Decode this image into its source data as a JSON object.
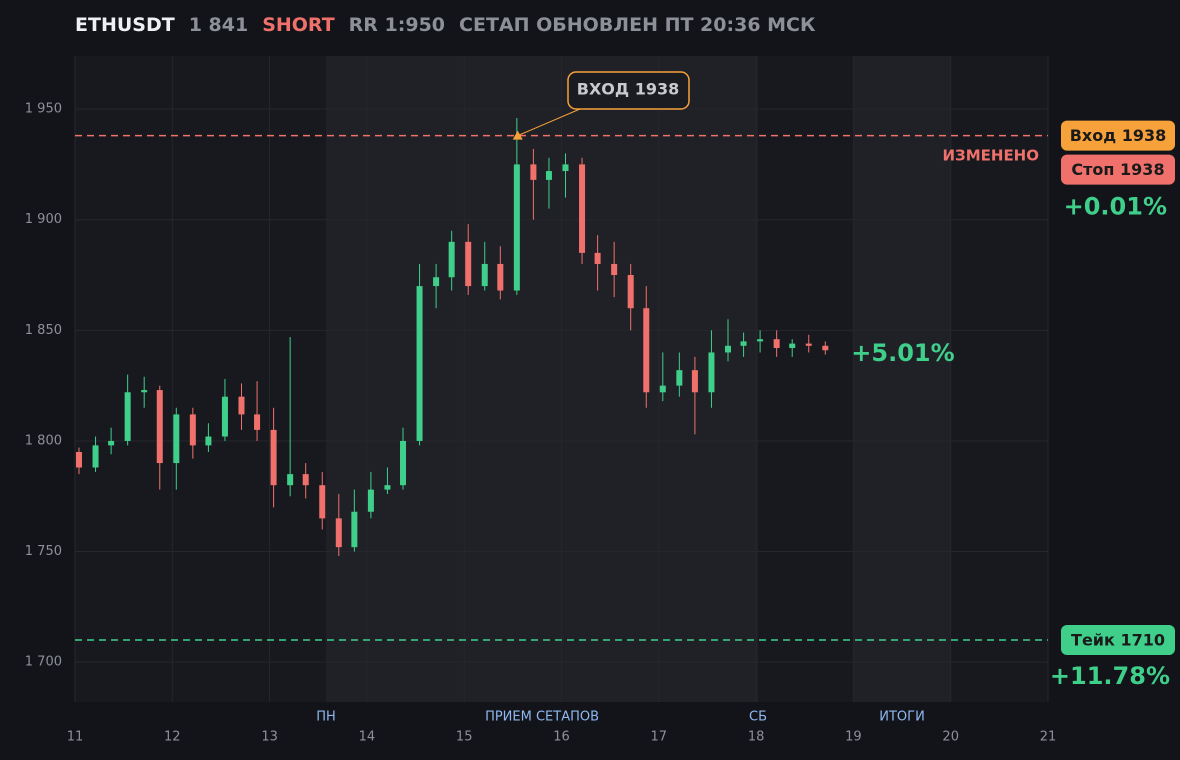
{
  "header": {
    "symbol": "ETHUSDT",
    "price": {
      "value": 1841,
      "label": "1 841"
    },
    "side": "SHORT",
    "rr": "RR 1:950",
    "updated": "СЕТАП ОБНОВЛЕН ПТ 20:36 МСК"
  },
  "chart_data": {
    "type": "candlestick",
    "x": [
      11,
      11.17,
      11.33,
      11.5,
      11.67,
      11.83,
      12,
      12.17,
      12.33,
      12.5,
      12.67,
      12.83,
      13,
      13.17,
      13.33,
      13.5,
      13.67,
      13.83,
      14,
      14.17,
      14.33,
      14.5,
      14.67,
      14.83,
      15,
      15.17,
      15.33,
      15.5,
      15.67,
      15.83,
      16,
      16.17,
      16.33,
      16.5,
      16.67,
      16.83,
      17,
      17.17,
      17.33,
      17.5,
      17.67,
      17.83,
      18,
      18.17,
      18.33,
      18.5,
      18.67
    ],
    "open": [
      1795,
      1788,
      1798,
      1800,
      1822,
      1823,
      1790,
      1812,
      1798,
      1802,
      1820,
      1812,
      1805,
      1780,
      1785,
      1780,
      1765,
      1752,
      1768,
      1778,
      1780,
      1800,
      1870,
      1874,
      1890,
      1870,
      1880,
      1868,
      1925,
      1918,
      1922,
      1925,
      1885,
      1880,
      1875,
      1860,
      1822,
      1825,
      1832,
      1822,
      1840,
      1843,
      1845,
      1846,
      1842,
      1844,
      1843
    ],
    "high": [
      1797,
      1802,
      1806,
      1830,
      1829,
      1825,
      1815,
      1815,
      1808,
      1828,
      1826,
      1827,
      1815,
      1847,
      1790,
      1786,
      1776,
      1778,
      1786,
      1788,
      1806,
      1880,
      1880,
      1895,
      1898,
      1890,
      1888,
      1946,
      1932,
      1928,
      1930,
      1928,
      1893,
      1890,
      1880,
      1870,
      1840,
      1840,
      1838,
      1850,
      1855,
      1849,
      1850,
      1850,
      1846,
      1848,
      1845
    ],
    "low": [
      1785,
      1786,
      1794,
      1798,
      1815,
      1778,
      1778,
      1792,
      1795,
      1800,
      1805,
      1800,
      1770,
      1775,
      1774,
      1760,
      1748,
      1750,
      1765,
      1776,
      1778,
      1798,
      1860,
      1868,
      1866,
      1868,
      1864,
      1866,
      1900,
      1905,
      1910,
      1880,
      1868,
      1865,
      1850,
      1815,
      1818,
      1820,
      1803,
      1815,
      1836,
      1838,
      1840,
      1838,
      1838,
      1840,
      1839
    ],
    "close": [
      1788,
      1798,
      1800,
      1822,
      1823,
      1790,
      1812,
      1798,
      1802,
      1820,
      1812,
      1805,
      1780,
      1785,
      1780,
      1765,
      1752,
      1768,
      1778,
      1780,
      1800,
      1870,
      1874,
      1890,
      1870,
      1880,
      1868,
      1925,
      1918,
      1922,
      1925,
      1885,
      1880,
      1875,
      1860,
      1822,
      1825,
      1832,
      1822,
      1840,
      1843,
      1845,
      1846,
      1842,
      1844,
      1843,
      1841
    ],
    "up_color": "#3fcf8a",
    "down_color": "#f0716c",
    "xlim": [
      11,
      21
    ],
    "xticks": [
      11,
      12,
      13,
      14,
      15,
      16,
      17,
      18,
      19,
      20,
      21
    ],
    "ylim": [
      1682,
      1974
    ],
    "yticks": [
      {
        "value": 1700,
        "label": "1 700"
      },
      {
        "value": 1750,
        "label": "1 750"
      },
      {
        "value": 1800,
        "label": "1 800"
      },
      {
        "value": 1850,
        "label": "1 850"
      },
      {
        "value": 1900,
        "label": "1 900"
      },
      {
        "value": 1950,
        "label": "1 950"
      }
    ],
    "grid": true,
    "bands": [
      {
        "from": 13.58,
        "to": 18.02
      },
      {
        "from": 19,
        "to": 20
      }
    ],
    "band_labels": [
      {
        "x": 13.58,
        "text": "ПН"
      },
      {
        "x": 15.8,
        "text": "ПРИЕМ СЕТАПОВ"
      },
      {
        "x": 18.02,
        "text": "СБ"
      },
      {
        "x": 19.5,
        "text": "ИТОГИ"
      }
    ],
    "entry": {
      "value": 1938,
      "x": 15.55,
      "label": "Вход 1938",
      "note": "ИЗМЕНЕНО",
      "callout": "ВХОД 1938",
      "color": "#f7a13a"
    },
    "stop": {
      "value": 1938,
      "label": "Стоп 1938",
      "pct": "+0.01%",
      "color": "#f0716c"
    },
    "take": {
      "value": 1710,
      "label": "Тейк 1710",
      "pct": "+11.78%",
      "color": "#3fcf8a"
    },
    "current_pct": "+5.01%"
  }
}
